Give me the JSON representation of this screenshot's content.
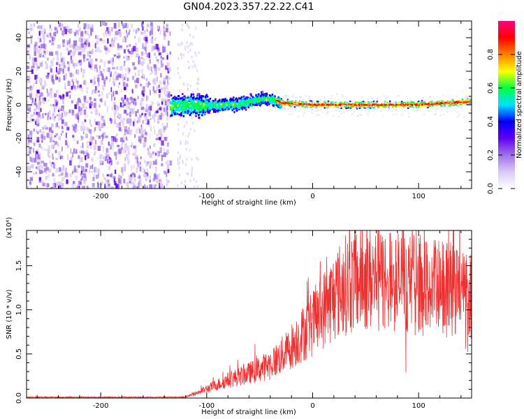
{
  "figure": {
    "title": "GN04.2023.357.22.22.C41"
  },
  "chart_data": [
    {
      "type": "heatmap",
      "xlabel": "Height of straight line (km)",
      "ylabel": "Frequency (Hz)",
      "xlim": [
        -270,
        150
      ],
      "ylim": [
        -50,
        50
      ],
      "x_ticks": [
        -200,
        -100,
        0,
        100
      ],
      "y_ticks": [
        -40,
        -20,
        0,
        20,
        40
      ],
      "colorbar": {
        "label": "Normalized spectral amplitude",
        "range": [
          0,
          1
        ],
        "ticks": [
          "0.0",
          "0.2",
          "0.4",
          "0.6",
          "0.8"
        ],
        "colors": [
          "#ffffff",
          "#dcc8f4",
          "#a070e8",
          "#6000f0",
          "#0000ff",
          "#00e0ff",
          "#00ff40",
          "#ffff00",
          "#ff8000",
          "#ff0000",
          "#ff0080"
        ]
      },
      "regions": [
        {
          "x": [
            -270,
            -135
          ],
          "freq_range": [
            -50,
            50
          ],
          "amplitude": 0.1
        },
        {
          "x": [
            -135,
            -100
          ],
          "freq_range": [
            -12,
            12
          ],
          "amplitude": 0.25
        },
        {
          "x": [
            -100,
            -30
          ],
          "freq_range": [
            -6,
            8
          ],
          "amplitude": 0.3
        },
        {
          "x": [
            -30,
            150
          ],
          "freq_range": [
            -2,
            2
          ],
          "amplitude": 0.85
        }
      ],
      "ridge": {
        "x": [
          -135,
          -100,
          -70,
          -50,
          -40,
          -30,
          0,
          50,
          100,
          150
        ],
        "freq": [
          0,
          0,
          1,
          4,
          4,
          1,
          0,
          0,
          0,
          2
        ]
      }
    },
    {
      "type": "line",
      "xlabel": "Height of straight line (km)",
      "ylabel": "SNR (10 * v/v)",
      "y_multiplier": "(x10⁴)",
      "xlim": [
        -270,
        150
      ],
      "ylim": [
        0,
        1.9
      ],
      "x_ticks": [
        -200,
        -100,
        0,
        100
      ],
      "y_ticks": [
        "0.0",
        "0.5",
        "1.0",
        "1.5"
      ],
      "color": "#f03030",
      "envelope": {
        "x": [
          -270,
          -120,
          -105,
          -80,
          -60,
          -40,
          -25,
          -10,
          0,
          10,
          20,
          30,
          50,
          70,
          90,
          110,
          130,
          150
        ],
        "y": [
          0.01,
          0.01,
          0.08,
          0.2,
          0.28,
          0.38,
          0.52,
          0.72,
          0.85,
          1.0,
          1.15,
          1.28,
          1.36,
          1.34,
          1.3,
          1.25,
          1.22,
          1.2
        ]
      }
    }
  ]
}
